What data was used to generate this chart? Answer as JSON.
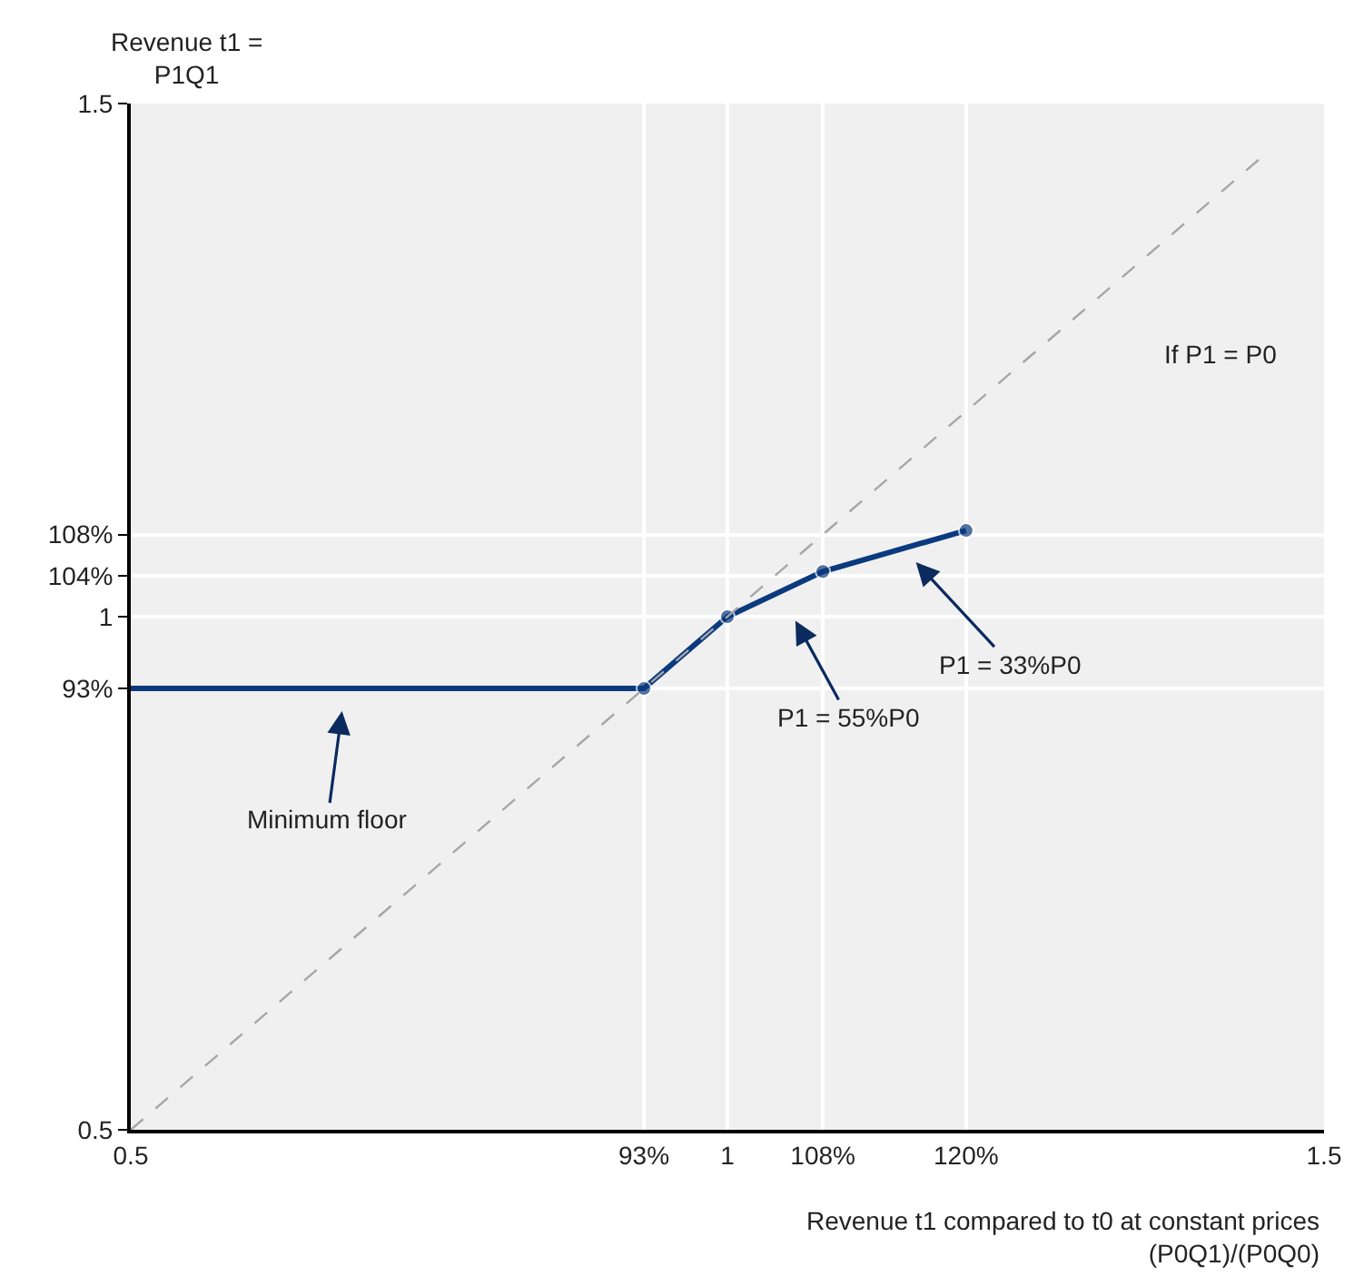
{
  "chart_data": {
    "type": "line",
    "xlabel": "Revenue t1 compared to t0 at constant prices\n(P0Q1)/(P0Q0)",
    "ylabel": "Revenue t1 =\nP1Q1",
    "series": [
      {
        "color": "#0b3a7e",
        "x": [
          0.5,
          0.93,
          1,
          1.08,
          1.2
        ],
        "values": [
          0.93,
          0.93,
          1,
          1.044,
          1.084
        ],
        "marker": "circle",
        "line_style": "solid"
      },
      {
        "color": "#a6a6a6",
        "x": [
          0.5,
          1.447
        ],
        "values": [
          0.5,
          1.447
        ],
        "marker": "none",
        "line_style": "dashed"
      }
    ],
    "xlim": [
      0.5,
      1.5
    ],
    "ylim": [
      0.5,
      1.5
    ],
    "xticks": [
      0.5,
      {
        "value": 0.93,
        "label": "93%"
      },
      1,
      {
        "value": 1.08,
        "label": "108%"
      },
      {
        "value": 1.2,
        "label": "120%"
      },
      1.5
    ],
    "yticks": [
      0.5,
      {
        "value": 0.93,
        "label": "93%"
      },
      1,
      {
        "value": 1.04,
        "label": "104%"
      },
      {
        "value": 1.08,
        "label": "108%"
      },
      1.5
    ],
    "grid": true,
    "annotations": [
      "If P1 = P0",
      "Minimum floor",
      "P1 = 55%P0",
      "P1 = 33%P0"
    ]
  }
}
